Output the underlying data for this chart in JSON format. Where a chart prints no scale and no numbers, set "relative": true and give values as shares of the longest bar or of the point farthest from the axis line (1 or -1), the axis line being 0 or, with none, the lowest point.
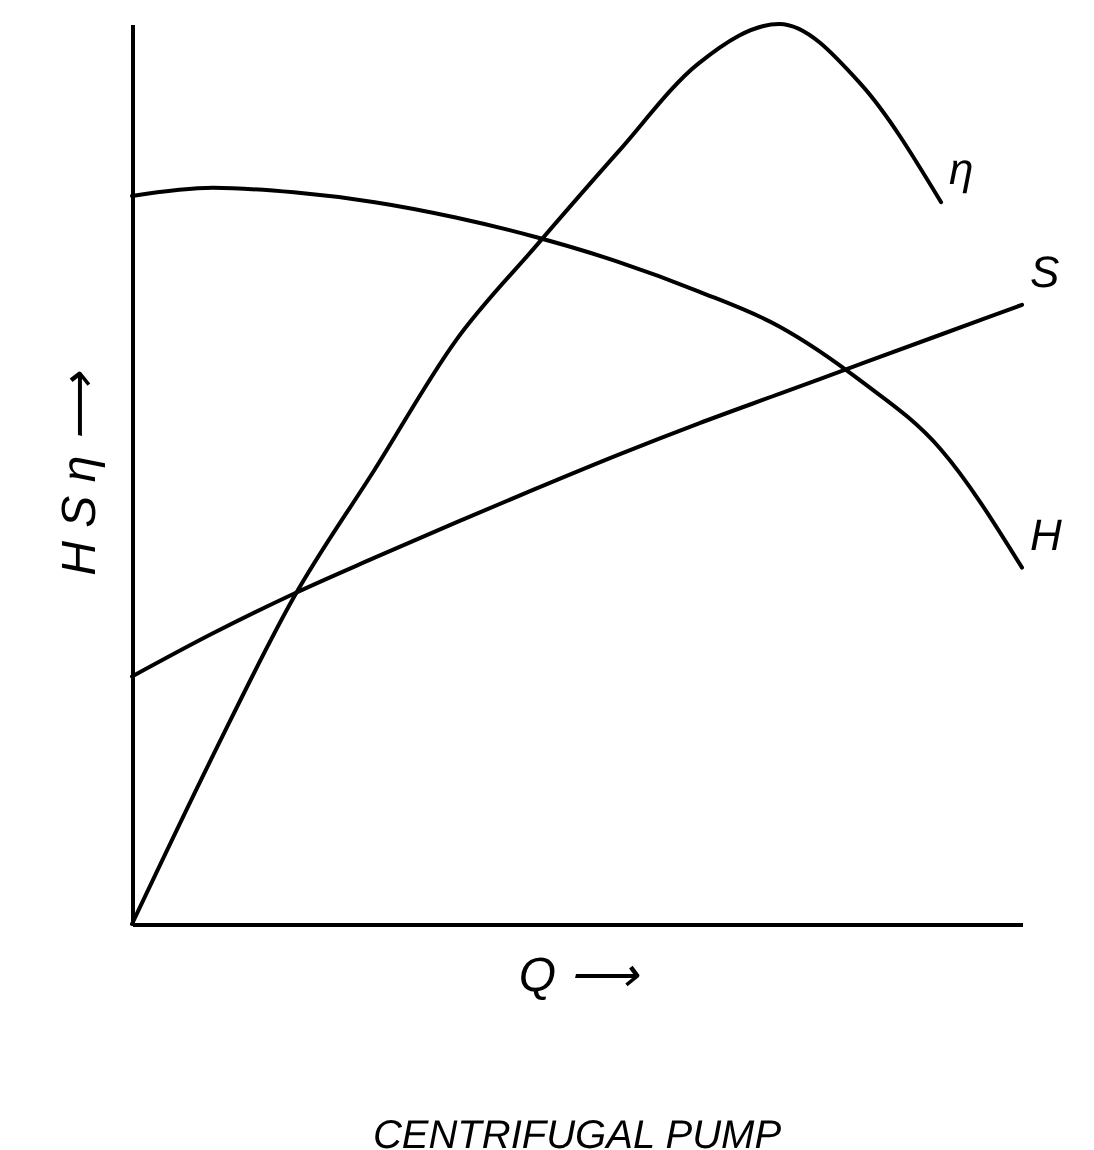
{
  "chart_data": {
    "type": "line",
    "relative": true,
    "xlabel": "Q ⟶",
    "ylabel": "H S η ⟶",
    "annotations": [
      "CENTRIFUGAL PUMP"
    ],
    "legend": false,
    "grid": false,
    "marker": "none",
    "line_style": "solid",
    "categories": [
      null,
      null,
      null,
      null,
      null,
      null,
      null,
      null,
      null,
      null,
      null,
      null
    ],
    "series": [
      {
        "name": "η",
        "color": "#000000",
        "values": [
          0,
          0.187,
          0.363,
          0.505,
          0.648,
          0.754,
          0.857,
          0.956,
          1,
          0.934,
          0.802,
          null
        ]
      },
      {
        "name": "S",
        "color": "#000000",
        "values": [
          0.275,
          0.323,
          0.367,
          0.407,
          0.446,
          0.484,
          0.521,
          0.556,
          0.589,
          0.622,
          0.655,
          0.688
        ]
      },
      {
        "name": "H",
        "color": "#000000",
        "values": [
          0.809,
          0.818,
          0.813,
          0.802,
          0.785,
          0.763,
          0.736,
          0.703,
          0.664,
          0.604,
          0.527,
          0.396
        ]
      }
    ]
  }
}
